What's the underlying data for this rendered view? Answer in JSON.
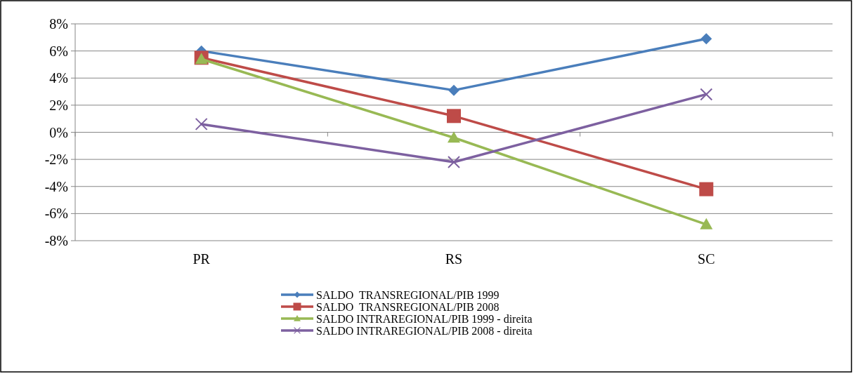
{
  "chart_data": {
    "type": "line",
    "categories": [
      "PR",
      "RS",
      "SC"
    ],
    "series": [
      {
        "name": "SALDO  TRANSREGIONAL/PIB 1999",
        "color": "#4a7ebb",
        "marker": "diamond",
        "values": [
          6.0,
          3.1,
          6.9
        ]
      },
      {
        "name": "SALDO  TRANSREGIONAL/PIB 2008",
        "color": "#be4b48",
        "marker": "square",
        "values": [
          5.5,
          1.2,
          -4.2
        ]
      },
      {
        "name": "SALDO INTRAREGIONAL/PIB 1999 - direita",
        "color": "#98b954",
        "marker": "triangle",
        "values": [
          5.4,
          -0.4,
          -6.8
        ]
      },
      {
        "name": "SALDO INTRAREGIONAL/PIB 2008 - direita",
        "color": "#7d60a0",
        "marker": "cross",
        "values": [
          0.6,
          -2.2,
          2.8
        ]
      }
    ],
    "ylim": [
      -8,
      8
    ],
    "yticks": [
      {
        "value": -8,
        "label": "-8%"
      },
      {
        "value": -6,
        "label": "-6%"
      },
      {
        "value": -4,
        "label": "-4%"
      },
      {
        "value": -2,
        "label": "-2%"
      },
      {
        "value": 0,
        "label": "0%"
      },
      {
        "value": 2,
        "label": "2%"
      },
      {
        "value": 4,
        "label": "4%"
      },
      {
        "value": 6,
        "label": "6%"
      },
      {
        "value": 8,
        "label": "8%"
      }
    ],
    "grid": "y",
    "legend": "bottom",
    "line_style": "solid"
  }
}
